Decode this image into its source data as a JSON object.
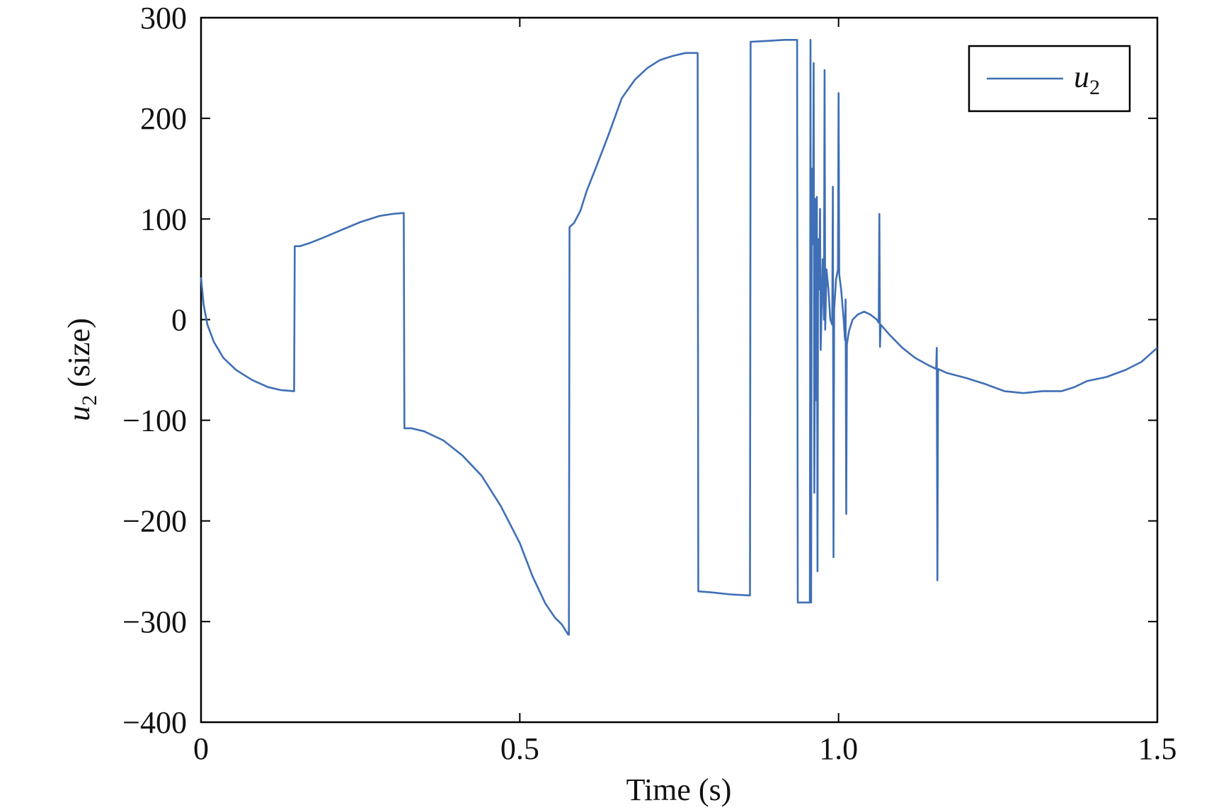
{
  "chart_data": {
    "type": "line",
    "xlabel": "Time (s)",
    "ylabel": {
      "var": "u",
      "sub": "2",
      "rest": " (size)"
    },
    "xlim": [
      0,
      1.5
    ],
    "ylim": [
      -400,
      300
    ],
    "x_ticks": [
      {
        "value": 0,
        "label": "0"
      },
      {
        "value": 0.5,
        "label": "0.5"
      },
      {
        "value": 1.0,
        "label": "1.0"
      },
      {
        "value": 1.5,
        "label": "1.5"
      }
    ],
    "y_ticks": [
      {
        "value": 300,
        "label": "300"
      },
      {
        "value": 200,
        "label": "200"
      },
      {
        "value": 100,
        "label": "100"
      },
      {
        "value": 0,
        "label": "0"
      },
      {
        "value": -100,
        "label": "−100"
      },
      {
        "value": -200,
        "label": "−200"
      },
      {
        "value": -300,
        "label": "−300"
      },
      {
        "value": -400,
        "label": "−400"
      }
    ],
    "grid": false,
    "legend_position": "top-right",
    "series": [
      {
        "name": "u2",
        "legend": {
          "var": "u",
          "sub": "2"
        },
        "color": "#3f6fb5",
        "points": [
          [
            0.0,
            42
          ],
          [
            0.004,
            15
          ],
          [
            0.01,
            -5
          ],
          [
            0.02,
            -22
          ],
          [
            0.035,
            -38
          ],
          [
            0.055,
            -50
          ],
          [
            0.08,
            -60
          ],
          [
            0.105,
            -67
          ],
          [
            0.125,
            -70
          ],
          [
            0.145,
            -71
          ],
          [
            0.146,
            -71
          ],
          [
            0.147,
            73
          ],
          [
            0.155,
            73
          ],
          [
            0.17,
            76
          ],
          [
            0.19,
            81
          ],
          [
            0.22,
            89
          ],
          [
            0.25,
            97
          ],
          [
            0.28,
            103
          ],
          [
            0.3,
            105
          ],
          [
            0.317,
            106
          ],
          [
            0.318,
            106
          ],
          [
            0.319,
            -108
          ],
          [
            0.33,
            -108
          ],
          [
            0.35,
            -111
          ],
          [
            0.38,
            -120
          ],
          [
            0.41,
            -135
          ],
          [
            0.44,
            -155
          ],
          [
            0.47,
            -185
          ],
          [
            0.5,
            -222
          ],
          [
            0.52,
            -255
          ],
          [
            0.54,
            -282
          ],
          [
            0.555,
            -296
          ],
          [
            0.566,
            -303
          ],
          [
            0.576,
            -313
          ],
          [
            0.577,
            -313
          ],
          [
            0.578,
            92
          ],
          [
            0.585,
            96
          ],
          [
            0.595,
            108
          ],
          [
            0.605,
            128
          ],
          [
            0.62,
            152
          ],
          [
            0.64,
            185
          ],
          [
            0.66,
            220
          ],
          [
            0.68,
            238
          ],
          [
            0.7,
            250
          ],
          [
            0.72,
            258
          ],
          [
            0.74,
            262
          ],
          [
            0.76,
            265
          ],
          [
            0.778,
            265
          ],
          [
            0.779,
            265
          ],
          [
            0.78,
            -270
          ],
          [
            0.8,
            -271
          ],
          [
            0.83,
            -273
          ],
          [
            0.86,
            -274
          ],
          [
            0.861,
            -274
          ],
          [
            0.862,
            276
          ],
          [
            0.89,
            277
          ],
          [
            0.915,
            278
          ],
          [
            0.934,
            278
          ],
          [
            0.935,
            278
          ],
          [
            0.936,
            -281
          ],
          [
            0.945,
            -281
          ],
          [
            0.955,
            -281
          ],
          [
            0.956,
            278
          ],
          [
            0.957,
            -281
          ],
          [
            0.958,
            150
          ],
          [
            0.96,
            75
          ],
          [
            0.961,
            255
          ],
          [
            0.962,
            -172
          ],
          [
            0.964,
            120
          ],
          [
            0.965,
            -80
          ],
          [
            0.966,
            122
          ],
          [
            0.967,
            -250
          ],
          [
            0.968,
            80
          ],
          [
            0.97,
            30
          ],
          [
            0.971,
            110
          ],
          [
            0.972,
            -30
          ],
          [
            0.975,
            60
          ],
          [
            0.977,
            0
          ],
          [
            0.978,
            248
          ],
          [
            0.979,
            -10
          ],
          [
            0.981,
            50
          ],
          [
            0.984,
            30
          ],
          [
            0.987,
            0
          ],
          [
            0.99,
            -5
          ],
          [
            0.991,
            132
          ],
          [
            0.992,
            -236
          ],
          [
            0.993,
            10
          ],
          [
            0.996,
            40
          ],
          [
            0.999,
            50
          ],
          [
            1.0,
            225
          ],
          [
            1.001,
            45
          ],
          [
            1.004,
            30
          ],
          [
            1.008,
            0
          ],
          [
            1.01,
            -20
          ],
          [
            1.011,
            20
          ],
          [
            1.012,
            -193
          ],
          [
            1.013,
            -25
          ],
          [
            1.016,
            -12
          ],
          [
            1.022,
            0
          ],
          [
            1.03,
            5
          ],
          [
            1.04,
            8
          ],
          [
            1.05,
            5
          ],
          [
            1.06,
            0
          ],
          [
            1.063,
            -3
          ],
          [
            1.064,
            105
          ],
          [
            1.065,
            -27
          ],
          [
            1.066,
            -5
          ],
          [
            1.08,
            -15
          ],
          [
            1.1,
            -28
          ],
          [
            1.12,
            -38
          ],
          [
            1.14,
            -45
          ],
          [
            1.153,
            -49
          ],
          [
            1.154,
            -28
          ],
          [
            1.155,
            -259
          ],
          [
            1.156,
            -49
          ],
          [
            1.17,
            -53
          ],
          [
            1.2,
            -58
          ],
          [
            1.23,
            -64
          ],
          [
            1.26,
            -71
          ],
          [
            1.29,
            -73
          ],
          [
            1.32,
            -71
          ],
          [
            1.35,
            -71
          ],
          [
            1.37,
            -67
          ],
          [
            1.39,
            -61
          ],
          [
            1.42,
            -57
          ],
          [
            1.45,
            -50
          ],
          [
            1.475,
            -42
          ],
          [
            1.5,
            -28
          ]
        ]
      }
    ]
  }
}
